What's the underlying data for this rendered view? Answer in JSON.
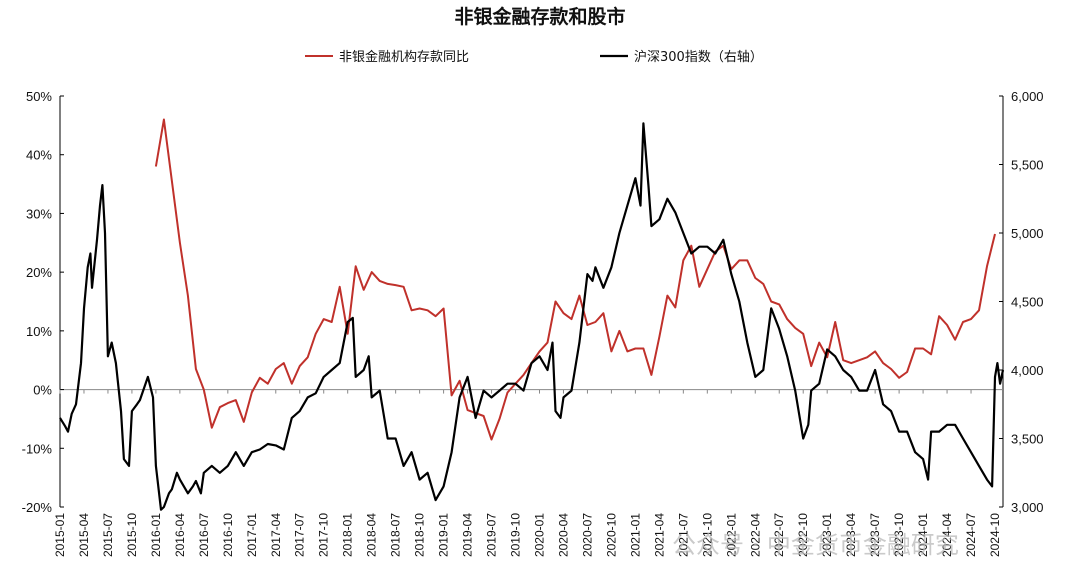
{
  "chart_data": {
    "type": "line",
    "title": "非银金融存款和股市",
    "watermark": "公众号 · 中金货币金融研究",
    "colors": {
      "deposit": "#c0312b",
      "csi300": "#000000"
    },
    "left_axis": {
      "ylim": [
        -20,
        50
      ],
      "ticks": [
        "-20%",
        "-10%",
        "0%",
        "10%",
        "20%",
        "30%",
        "40%",
        "50%"
      ]
    },
    "right_axis": {
      "ylim": [
        3000,
        6000
      ],
      "ticks": [
        "3,000",
        "3,500",
        "4,000",
        "4,500",
        "5,000",
        "5,500",
        "6,000"
      ]
    },
    "x_ticks": [
      "2015-01",
      "2015-04",
      "2015-07",
      "2015-10",
      "2016-01",
      "2016-04",
      "2016-07",
      "2016-10",
      "2017-01",
      "2017-04",
      "2017-07",
      "2017-10",
      "2018-01",
      "2018-04",
      "2018-07",
      "2018-10",
      "2019-01",
      "2019-04",
      "2019-07",
      "2019-10",
      "2020-01",
      "2020-04",
      "2020-07",
      "2020-10",
      "2021-01",
      "2021-04",
      "2021-07",
      "2021-10",
      "2022-01",
      "2022-04",
      "2022-07",
      "2022-10",
      "2023-01",
      "2023-04",
      "2023-07",
      "2023-10",
      "2024-01",
      "2024-04",
      "2024-07",
      "2024-10"
    ],
    "series": [
      {
        "name": "非银金融机构存款同比",
        "axis": "left",
        "points": [
          [
            "2016-01",
            38
          ],
          [
            "2016-02",
            46
          ],
          [
            "2016-04",
            25
          ],
          [
            "2016-05",
            16
          ],
          [
            "2016-06",
            3.5
          ],
          [
            "2016-07",
            0
          ],
          [
            "2016-08",
            -6.5
          ],
          [
            "2016-09",
            -3
          ],
          [
            "2016-10",
            -2.3
          ],
          [
            "2016-11",
            -1.8
          ],
          [
            "2016-12",
            -5.5
          ],
          [
            "2017-01",
            -0.5
          ],
          [
            "2017-02",
            2
          ],
          [
            "2017-03",
            1
          ],
          [
            "2017-04",
            3.5
          ],
          [
            "2017-05",
            4.5
          ],
          [
            "2017-06",
            1
          ],
          [
            "2017-07",
            4
          ],
          [
            "2017-08",
            5.5
          ],
          [
            "2017-09",
            9.5
          ],
          [
            "2017-10",
            12
          ],
          [
            "2017-11",
            11.5
          ],
          [
            "2017-12",
            17.5
          ],
          [
            "2018-01",
            9.5
          ],
          [
            "2018-02",
            21
          ],
          [
            "2018-03",
            17
          ],
          [
            "2018-04",
            20
          ],
          [
            "2018-05",
            18.5
          ],
          [
            "2018-06",
            18
          ],
          [
            "2018-07",
            17.8
          ],
          [
            "2018-08",
            17.5
          ],
          [
            "2018-09",
            13.5
          ],
          [
            "2018-10",
            13.8
          ],
          [
            "2018-11",
            13.5
          ],
          [
            "2018-12",
            12.5
          ],
          [
            "2019-01",
            13.8
          ],
          [
            "2019-02",
            -1
          ],
          [
            "2019-03",
            1.5
          ],
          [
            "2019-04",
            -3.5
          ],
          [
            "2019-05",
            -4
          ],
          [
            "2019-06",
            -4.5
          ],
          [
            "2019-07",
            -8.5
          ],
          [
            "2019-08",
            -5
          ],
          [
            "2019-09",
            -0.5
          ],
          [
            "2019-10",
            1
          ],
          [
            "2019-11",
            2.5
          ],
          [
            "2019-12",
            4.5
          ],
          [
            "2020-01",
            6.5
          ],
          [
            "2020-02",
            8
          ],
          [
            "2020-03",
            15
          ],
          [
            "2020-04",
            13
          ],
          [
            "2020-05",
            12
          ],
          [
            "2020-06",
            16
          ],
          [
            "2020-07",
            11
          ],
          [
            "2020-08",
            11.5
          ],
          [
            "2020-09",
            13
          ],
          [
            "2020-10",
            6.5
          ],
          [
            "2020-11",
            10
          ],
          [
            "2020-12",
            6.5
          ],
          [
            "2021-01",
            7
          ],
          [
            "2021-02",
            7
          ],
          [
            "2021-03",
            2.5
          ],
          [
            "2021-04",
            9
          ],
          [
            "2021-05",
            16
          ],
          [
            "2021-06",
            14
          ],
          [
            "2021-07",
            22
          ],
          [
            "2021-08",
            24.5
          ],
          [
            "2021-09",
            17.5
          ],
          [
            "2021-10",
            20.5
          ],
          [
            "2021-11",
            23.5
          ],
          [
            "2021-12",
            24.5
          ],
          [
            "2022-01",
            20.5
          ],
          [
            "2022-02",
            22
          ],
          [
            "2022-03",
            22
          ],
          [
            "2022-04",
            19
          ],
          [
            "2022-05",
            18
          ],
          [
            "2022-06",
            15
          ],
          [
            "2022-07",
            14.5
          ],
          [
            "2022-08",
            12
          ],
          [
            "2022-09",
            10.5
          ],
          [
            "2022-10",
            9.5
          ],
          [
            "2022-11",
            4
          ],
          [
            "2022-12",
            8
          ],
          [
            "2023-01",
            5.5
          ],
          [
            "2023-02",
            11.5
          ],
          [
            "2023-03",
            5
          ],
          [
            "2023-04",
            4.5
          ],
          [
            "2023-05",
            5
          ],
          [
            "2023-06",
            5.5
          ],
          [
            "2023-07",
            6.5
          ],
          [
            "2023-08",
            4.5
          ],
          [
            "2023-09",
            3.5
          ],
          [
            "2023-10",
            2
          ],
          [
            "2023-11",
            3
          ],
          [
            "2023-12",
            7
          ],
          [
            "2024-01",
            7
          ],
          [
            "2024-02",
            6
          ],
          [
            "2024-03",
            12.5
          ],
          [
            "2024-04",
            11
          ],
          [
            "2024-05",
            8.5
          ],
          [
            "2024-06",
            11.5
          ],
          [
            "2024-07",
            12
          ],
          [
            "2024-08",
            13.5
          ],
          [
            "2024-09",
            21
          ],
          [
            "2024-10",
            26.5
          ]
        ]
      },
      {
        "name": "沪深300指数（右轴）",
        "axis": "right",
        "points": [
          [
            "2015-01",
            3650
          ],
          [
            "2015-01-20",
            3590
          ],
          [
            "2015-02",
            3550
          ],
          [
            "2015-02-15",
            3680
          ],
          [
            "2015-03",
            3750
          ],
          [
            "2015-03-20",
            4050
          ],
          [
            "2015-04",
            4450
          ],
          [
            "2015-04-15",
            4750
          ],
          [
            "2015-04-25",
            4850
          ],
          [
            "2015-05",
            4600
          ],
          [
            "2015-05-20",
            4950
          ],
          [
            "2015-06",
            5200
          ],
          [
            "2015-06-10",
            5350
          ],
          [
            "2015-06-20",
            5000
          ],
          [
            "2015-07",
            4100
          ],
          [
            "2015-07-15",
            4200
          ],
          [
            "2015-08",
            4050
          ],
          [
            "2015-08-20",
            3700
          ],
          [
            "2015-09",
            3350
          ],
          [
            "2015-09-20",
            3300
          ],
          [
            "2015-10",
            3700
          ],
          [
            "2015-10-20",
            3750
          ],
          [
            "2015-11",
            3780
          ],
          [
            "2015-12",
            3950
          ],
          [
            "2015-12-20",
            3800
          ],
          [
            "2016-01",
            3300
          ],
          [
            "2016-01-20",
            2980
          ],
          [
            "2016-02",
            3000
          ],
          [
            "2016-02-20",
            3100
          ],
          [
            "2016-03",
            3130
          ],
          [
            "2016-03-20",
            3250
          ],
          [
            "2016-04",
            3200
          ],
          [
            "2016-05",
            3100
          ],
          [
            "2016-05-20",
            3150
          ],
          [
            "2016-06",
            3190
          ],
          [
            "2016-06-20",
            3100
          ],
          [
            "2016-07",
            3250
          ],
          [
            "2016-08",
            3300
          ],
          [
            "2016-09",
            3250
          ],
          [
            "2016-10",
            3300
          ],
          [
            "2016-11",
            3400
          ],
          [
            "2016-12",
            3300
          ],
          [
            "2017-01",
            3400
          ],
          [
            "2017-02",
            3420
          ],
          [
            "2017-03",
            3460
          ],
          [
            "2017-04",
            3450
          ],
          [
            "2017-05",
            3420
          ],
          [
            "2017-06",
            3650
          ],
          [
            "2017-07",
            3700
          ],
          [
            "2017-08",
            3800
          ],
          [
            "2017-09",
            3830
          ],
          [
            "2017-10",
            3950
          ],
          [
            "2017-11",
            4000
          ],
          [
            "2017-12",
            4050
          ],
          [
            "2018-01",
            4350
          ],
          [
            "2018-01-20",
            4380
          ],
          [
            "2018-02",
            3950
          ],
          [
            "2018-03",
            4000
          ],
          [
            "2018-03-20",
            4100
          ],
          [
            "2018-04",
            3800
          ],
          [
            "2018-05",
            3850
          ],
          [
            "2018-06",
            3500
          ],
          [
            "2018-07",
            3500
          ],
          [
            "2018-08",
            3300
          ],
          [
            "2018-09",
            3400
          ],
          [
            "2018-10",
            3200
          ],
          [
            "2018-11",
            3250
          ],
          [
            "2018-12",
            3050
          ],
          [
            "2019-01",
            3150
          ],
          [
            "2019-02",
            3400
          ],
          [
            "2019-02-20",
            3650
          ],
          [
            "2019-03",
            3800
          ],
          [
            "2019-04",
            3950
          ],
          [
            "2019-05",
            3650
          ],
          [
            "2019-06",
            3850
          ],
          [
            "2019-07",
            3800
          ],
          [
            "2019-08",
            3850
          ],
          [
            "2019-09",
            3900
          ],
          [
            "2019-10",
            3900
          ],
          [
            "2019-11",
            3850
          ],
          [
            "2019-12",
            4050
          ],
          [
            "2020-01",
            4100
          ],
          [
            "2020-02",
            4000
          ],
          [
            "2020-02-20",
            4200
          ],
          [
            "2020-03",
            3700
          ],
          [
            "2020-03-20",
            3650
          ],
          [
            "2020-04",
            3800
          ],
          [
            "2020-05",
            3850
          ],
          [
            "2020-06",
            4200
          ],
          [
            "2020-07",
            4700
          ],
          [
            "2020-07-20",
            4650
          ],
          [
            "2020-08",
            4750
          ],
          [
            "2020-09",
            4600
          ],
          [
            "2020-10",
            4750
          ],
          [
            "2020-11",
            5000
          ],
          [
            "2020-12",
            5200
          ],
          [
            "2021-01",
            5400
          ],
          [
            "2021-01-20",
            5200
          ],
          [
            "2021-02",
            5800
          ],
          [
            "2021-02-20",
            5350
          ],
          [
            "2021-03",
            5050
          ],
          [
            "2021-04",
            5100
          ],
          [
            "2021-05",
            5250
          ],
          [
            "2021-06",
            5150
          ],
          [
            "2021-07",
            5000
          ],
          [
            "2021-08",
            4850
          ],
          [
            "2021-09",
            4900
          ],
          [
            "2021-10",
            4900
          ],
          [
            "2021-11",
            4850
          ],
          [
            "2021-12",
            4950
          ],
          [
            "2022-01",
            4700
          ],
          [
            "2022-02",
            4500
          ],
          [
            "2022-03",
            4200
          ],
          [
            "2022-04",
            3950
          ],
          [
            "2022-05",
            4000
          ],
          [
            "2022-06",
            4450
          ],
          [
            "2022-07",
            4300
          ],
          [
            "2022-08",
            4100
          ],
          [
            "2022-09",
            3850
          ],
          [
            "2022-10",
            3500
          ],
          [
            "2022-10-20",
            3600
          ],
          [
            "2022-11",
            3850
          ],
          [
            "2022-12",
            3900
          ],
          [
            "2023-01",
            4150
          ],
          [
            "2023-02",
            4100
          ],
          [
            "2023-03",
            4000
          ],
          [
            "2023-04",
            3950
          ],
          [
            "2023-05",
            3850
          ],
          [
            "2023-06",
            3850
          ],
          [
            "2023-07",
            4000
          ],
          [
            "2023-08",
            3750
          ],
          [
            "2023-09",
            3700
          ],
          [
            "2023-10",
            3550
          ],
          [
            "2023-11",
            3550
          ],
          [
            "2023-12",
            3400
          ],
          [
            "2024-01",
            3350
          ],
          [
            "2024-01-20",
            3200
          ],
          [
            "2024-02",
            3550
          ],
          [
            "2024-03",
            3550
          ],
          [
            "2024-04",
            3600
          ],
          [
            "2024-05",
            3600
          ],
          [
            "2024-06",
            3500
          ],
          [
            "2024-07",
            3400
          ],
          [
            "2024-08",
            3300
          ],
          [
            "2024-09",
            3200
          ],
          [
            "2024-09-20",
            3150
          ],
          [
            "2024-10",
            3950
          ],
          [
            "2024-10-10",
            4050
          ],
          [
            "2024-10-20",
            3900
          ],
          [
            "2024-11",
            4000
          ]
        ]
      }
    ],
    "legend_position": "top-center",
    "grid": false
  }
}
